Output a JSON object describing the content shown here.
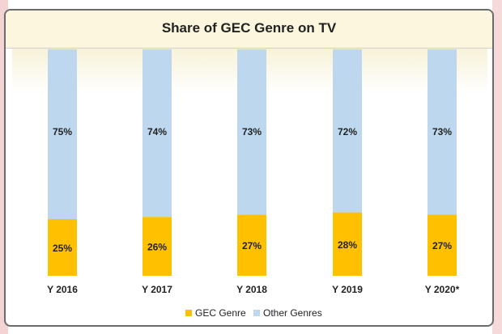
{
  "chart_data": {
    "type": "bar",
    "stacked": true,
    "title": "Share of GEC Genre on TV",
    "categories": [
      "Y 2016",
      "Y 2017",
      "Y 2018",
      "Y 2019",
      "Y 2020*"
    ],
    "series": [
      {
        "name": "GEC Genre",
        "values": [
          25,
          26,
          27,
          28,
          27
        ],
        "labels": [
          "25%",
          "26%",
          "27%",
          "28%",
          "27%"
        ],
        "color": "#ffc000"
      },
      {
        "name": "Other Genres",
        "values": [
          75,
          74,
          73,
          72,
          73
        ],
        "labels": [
          "75%",
          "74%",
          "73%",
          "72%",
          "73%"
        ],
        "color": "#bdd7ee"
      }
    ],
    "ylim": [
      0,
      100
    ],
    "grid": false,
    "legend_position": "bottom"
  }
}
